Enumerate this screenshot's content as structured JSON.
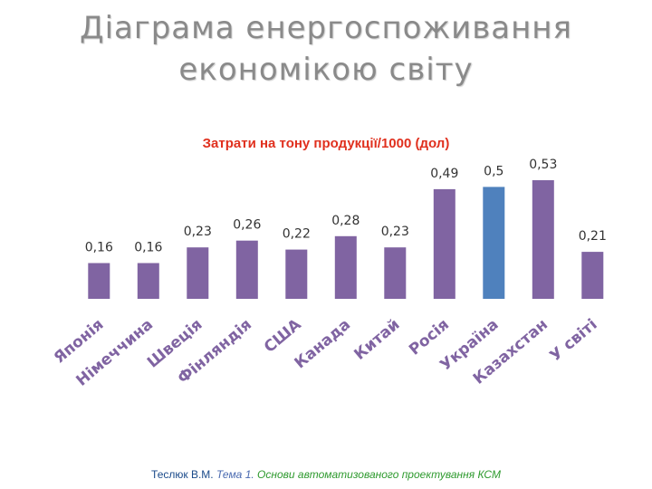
{
  "page": {
    "title_line1": "Діаграма енергоспоживання",
    "title_line2": "економікою світу"
  },
  "footer": {
    "author": "Теслюк В.М.",
    "theme": "Тема 1.",
    "topic": "Основи автоматизованого проектування КСМ"
  },
  "colors": {
    "bar": "#8064a2",
    "bar_highlight": "#4f81bd",
    "x_label": "#8064a2",
    "title": "#8a8a8a",
    "chart_title": "#e0301e"
  },
  "chart_data": {
    "type": "bar",
    "title": "Затрати на тону продукції/1000 (дол)",
    "xlabel": "",
    "ylabel": "",
    "ylim": [
      0,
      0.53
    ],
    "grid": false,
    "legend": "none",
    "categories": [
      "Японія",
      "Німеччина",
      "Швеція",
      "Фінляндія",
      "США",
      "Канада",
      "Китай",
      "Росія",
      "Україна",
      "Казахстан",
      "У світі"
    ],
    "values": [
      0.16,
      0.16,
      0.23,
      0.26,
      0.22,
      0.28,
      0.23,
      0.49,
      0.5,
      0.53,
      0.21
    ],
    "data_labels": [
      "0,16",
      "0,16",
      "0,23",
      "0,26",
      "0,22",
      "0,28",
      "0,23",
      "0,49",
      "0,5",
      "0,53",
      "0,21"
    ],
    "highlight_category": "Україна"
  }
}
